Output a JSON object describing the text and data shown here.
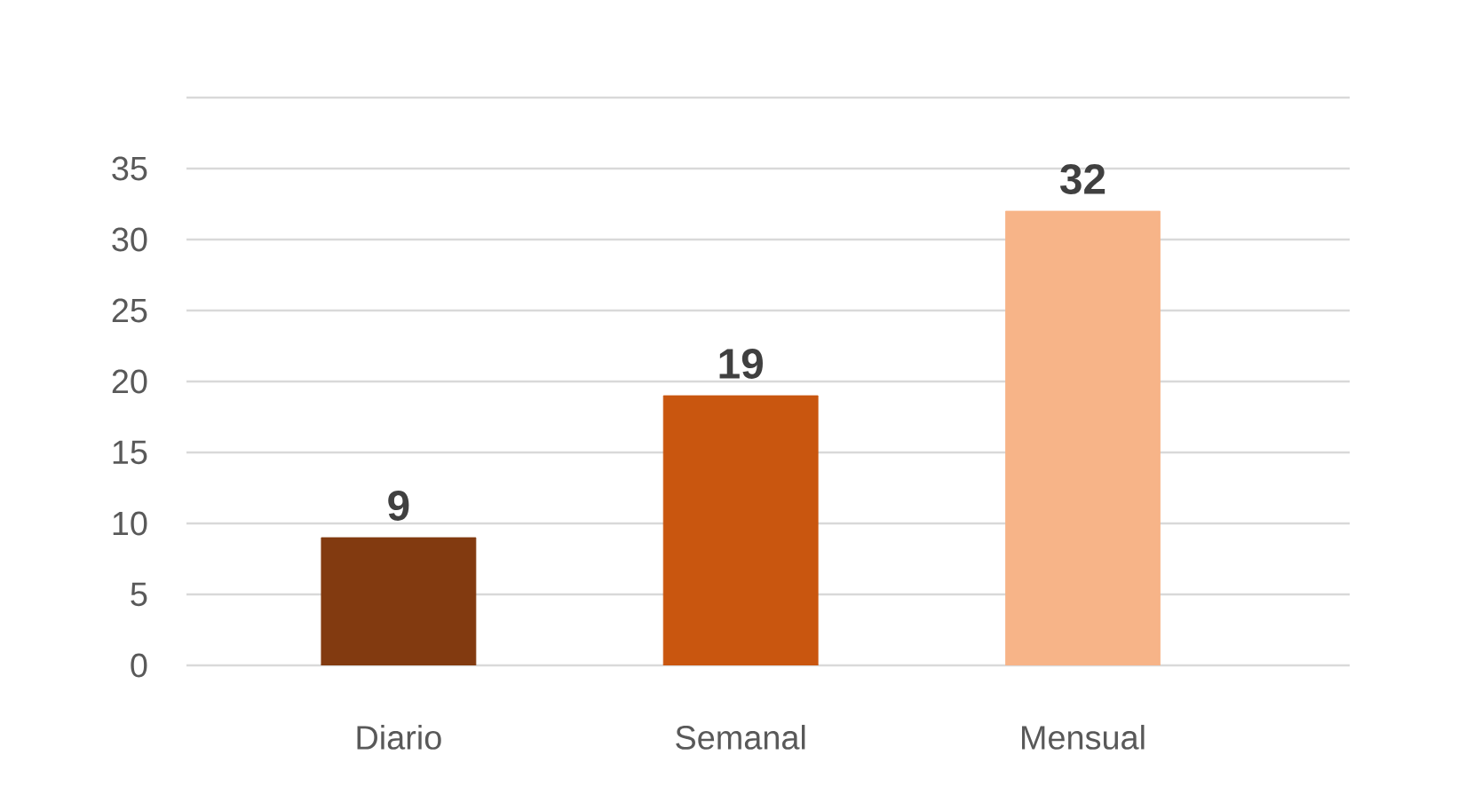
{
  "chart_data": {
    "type": "bar",
    "categories": [
      "Diario",
      "Semanal",
      "Mensual"
    ],
    "values": [
      9,
      19,
      32
    ],
    "colors": [
      "#823a10",
      "#c9560f",
      "#f7b488"
    ],
    "ylim": [
      0,
      40
    ],
    "yticks": [
      0,
      5,
      10,
      15,
      20,
      25,
      30,
      35,
      {
        "value": 40,
        "label": null
      }
    ],
    "grid": "y",
    "data_labels": true
  }
}
